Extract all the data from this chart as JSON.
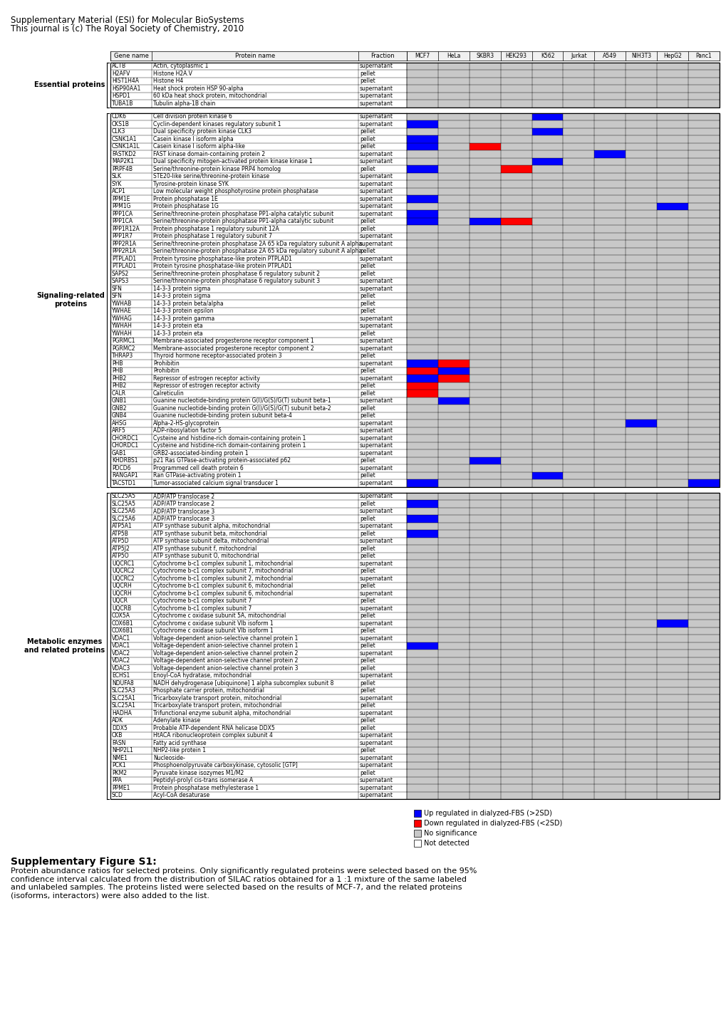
{
  "header_text1": "Supplementary Material (ESI) for Molecular BioSystems",
  "header_text2": "This journal is (c) The Royal Society of Chemistry, 2010",
  "col_headers": [
    "Gene name",
    "Protein name",
    "Fraction",
    "MCF7",
    "HeLa",
    "SKBR3",
    "HEK293",
    "K562",
    "Jurkat",
    "A549",
    "NIH3T3",
    "HepG2",
    "Panc1"
  ],
  "section_labels": [
    "Essential proteins",
    "Signaling-related\nproteins",
    "Metabolic enzymes\nand related proteins"
  ],
  "essential_proteins": [
    [
      "ACTB",
      "Actin, cytoplasmic 1",
      "supernatant",
      0,
      0,
      0,
      0,
      0,
      0,
      0,
      0,
      0,
      0
    ],
    [
      "H2AFV",
      "Histone H2A.V",
      "pellet",
      0,
      0,
      0,
      0,
      0,
      0,
      0,
      0,
      0,
      0
    ],
    [
      "HIST1H4A",
      "Histone H4",
      "pellet",
      0,
      0,
      0,
      0,
      0,
      0,
      0,
      0,
      0,
      0
    ],
    [
      "HSP90AA1",
      "Heat shock protein HSP 90-alpha",
      "supernatant",
      0,
      0,
      0,
      0,
      0,
      0,
      0,
      0,
      0,
      0
    ],
    [
      "HSPD1",
      "60 kDa heat shock protein, mitochondrial",
      "supernatant",
      0,
      0,
      0,
      0,
      0,
      0,
      0,
      0,
      0,
      0
    ],
    [
      "TUBA1B",
      "Tubulin alpha-1B chain",
      "supernatant",
      0,
      0,
      0,
      0,
      0,
      0,
      0,
      0,
      0,
      0
    ]
  ],
  "signaling_proteins": [
    [
      "CDK6",
      "Cell division protein kinase 6",
      "supernatant",
      0,
      0,
      0,
      0,
      1,
      0,
      0,
      0,
      0,
      0
    ],
    [
      "CKS1B",
      "Cyclin-dependent kinases regulatory subunit 1",
      "supernatant",
      1,
      0,
      0,
      0,
      0,
      0,
      0,
      0,
      0,
      0
    ],
    [
      "CLK3",
      "Dual specificity protein kinase CLK3",
      "pellet",
      0,
      0,
      0,
      0,
      1,
      0,
      0,
      0,
      0,
      0
    ],
    [
      "CSNK1A1",
      "Casein kinase I isoform alpha",
      "pellet",
      1,
      0,
      0,
      0,
      0,
      0,
      0,
      0,
      0,
      0
    ],
    [
      "CSNK1A1L",
      "Casein kinase I isoform alpha-like",
      "pellet",
      1,
      0,
      2,
      0,
      0,
      0,
      0,
      0,
      0,
      0
    ],
    [
      "FASTKD2",
      "FAST kinase domain-containing protein 2",
      "supernatant",
      0,
      0,
      0,
      0,
      0,
      0,
      1,
      0,
      0,
      0
    ],
    [
      "MAP2K1",
      "Dual specificity mitogen-activated protein kinase kinase 1",
      "supernatant",
      0,
      0,
      0,
      0,
      1,
      0,
      0,
      0,
      0,
      0
    ],
    [
      "PRPF4B",
      "Serine/threonine-protein kinase PRP4 homolog",
      "pellet",
      1,
      0,
      0,
      2,
      0,
      0,
      0,
      0,
      0,
      0
    ],
    [
      "SLK",
      "STE20-like serine/threonine-protein kinase",
      "supernatant",
      0,
      0,
      0,
      0,
      0,
      0,
      0,
      0,
      0,
      0
    ],
    [
      "SYK",
      "Tyrosine-protein kinase SYK",
      "supernatant",
      0,
      0,
      0,
      0,
      0,
      0,
      0,
      0,
      0,
      0
    ],
    [
      "ACP1",
      "Low molecular weight phosphotyrosine protein phosphatase",
      "supernatant",
      0,
      0,
      0,
      0,
      0,
      0,
      0,
      0,
      0,
      0
    ],
    [
      "PPM1E",
      "Protein phosphatase 1E",
      "supernatant",
      1,
      0,
      0,
      0,
      0,
      0,
      0,
      0,
      0,
      0
    ],
    [
      "PPM1G",
      "Protein phosphatase 1G",
      "supernatant",
      0,
      0,
      0,
      0,
      0,
      0,
      0,
      0,
      1,
      0
    ],
    [
      "PPP1CA",
      "Serine/threonine-protein phosphatase PP1-alpha catalytic subunit",
      "supernatant",
      1,
      0,
      0,
      0,
      0,
      0,
      0,
      0,
      0,
      0
    ],
    [
      "PPP1CA",
      "Serine/threonine-protein phosphatase PP1-alpha catalytic subunit",
      "pellet",
      1,
      0,
      1,
      2,
      0,
      0,
      0,
      0,
      0,
      0
    ],
    [
      "PPP1R12A",
      "Protein phosphatase 1 regulatory subunit 12A",
      "pellet",
      0,
      0,
      0,
      0,
      0,
      0,
      0,
      0,
      0,
      0
    ],
    [
      "PPP1R7",
      "Protein phosphatase 1 regulatory subunit 7",
      "supernatant",
      0,
      0,
      0,
      0,
      0,
      0,
      0,
      0,
      0,
      0
    ],
    [
      "PPP2R1A",
      "Serine/threonine-protein phosphatase 2A 65 kDa regulatory subunit A alpha",
      "supernatant",
      0,
      0,
      0,
      0,
      0,
      0,
      0,
      0,
      0,
      0
    ],
    [
      "PPP2R1A",
      "Serine/threonine-protein phosphatase 2A 65 kDa regulatory subunit A alpha",
      "pellet",
      0,
      0,
      0,
      0,
      0,
      0,
      0,
      0,
      0,
      0
    ],
    [
      "PTPLAD1",
      "Protein tyrosine phosphatase-like protein PTPLAD1",
      "supernatant",
      0,
      0,
      0,
      0,
      0,
      0,
      0,
      0,
      0,
      0
    ],
    [
      "PTPLAD1",
      "Protein tyrosine phosphatase-like protein PTPLAD1",
      "pellet",
      0,
      0,
      0,
      0,
      0,
      0,
      0,
      0,
      0,
      0
    ],
    [
      "SAPS2",
      "Serine/threonine-protein phosphatase 6 regulatory subunit 2",
      "pellet",
      0,
      0,
      0,
      0,
      0,
      0,
      0,
      0,
      0,
      0
    ],
    [
      "SAPS3",
      "Serine/threonine-protein phosphatase 6 regulatory subunit 3",
      "supernatant",
      0,
      0,
      0,
      0,
      0,
      0,
      0,
      0,
      0,
      0
    ],
    [
      "SFN",
      "14-3-3 protein sigma",
      "supernatant",
      0,
      0,
      0,
      0,
      0,
      0,
      0,
      0,
      0,
      0
    ],
    [
      "SFN",
      "14-3-3 protein sigma",
      "pellet",
      0,
      0,
      0,
      0,
      0,
      0,
      0,
      0,
      0,
      0
    ],
    [
      "YWHAB",
      "14-3-3 protein beta/alpha",
      "pellet",
      0,
      0,
      0,
      0,
      0,
      0,
      0,
      0,
      0,
      0
    ],
    [
      "YWHAE",
      "14-3-3 protein epsilon",
      "pellet",
      0,
      0,
      0,
      0,
      0,
      0,
      0,
      0,
      0,
      0
    ],
    [
      "YWHAG",
      "14-3-3 protein gamma",
      "supernatant",
      0,
      0,
      0,
      0,
      0,
      0,
      0,
      0,
      0,
      0
    ],
    [
      "YWHAH",
      "14-3-3 protein eta",
      "supernatant",
      0,
      0,
      0,
      0,
      0,
      0,
      0,
      0,
      0,
      0
    ],
    [
      "YWHAH",
      "14-3-3 protein eta",
      "pellet",
      0,
      0,
      0,
      0,
      0,
      0,
      0,
      0,
      0,
      0
    ],
    [
      "PGRMC1",
      "Membrane-associated progesterone receptor component 1",
      "supernatant",
      0,
      0,
      0,
      0,
      0,
      0,
      0,
      0,
      0,
      0
    ],
    [
      "PGRMC2",
      "Membrane-associated progesterone receptor component 2",
      "supernatant",
      0,
      0,
      0,
      0,
      0,
      0,
      0,
      0,
      0,
      0
    ],
    [
      "THRAP3",
      "Thyroid hormone receptor-associated protein 3",
      "pellet",
      0,
      0,
      0,
      0,
      0,
      0,
      0,
      0,
      0,
      0
    ],
    [
      "PHB",
      "Prohibitin",
      "supernatant",
      1,
      2,
      0,
      0,
      0,
      0,
      0,
      0,
      0,
      0
    ],
    [
      "PHB",
      "Prohibitin",
      "pellet",
      2,
      1,
      0,
      0,
      0,
      0,
      0,
      0,
      0,
      0
    ],
    [
      "PHB2",
      "Repressor of estrogen receptor activity",
      "supernatant",
      1,
      2,
      0,
      0,
      0,
      0,
      0,
      0,
      0,
      0
    ],
    [
      "PHB2",
      "Repressor of estrogen receptor activity",
      "pellet",
      2,
      0,
      0,
      0,
      0,
      0,
      0,
      0,
      0,
      0
    ],
    [
      "CALR",
      "Calreticulin",
      "pellet",
      2,
      0,
      0,
      0,
      0,
      0,
      0,
      0,
      0,
      0
    ],
    [
      "GNB1",
      "Guanine nucleotide-binding protein G(I)/G(S)/G(T) subunit beta-1",
      "supernatant",
      0,
      1,
      0,
      0,
      0,
      0,
      0,
      0,
      0,
      0
    ],
    [
      "GNB2",
      "Guanine nucleotide-binding protein G(I)/G(S)/G(T) subunit beta-2",
      "pellet",
      0,
      0,
      0,
      0,
      0,
      0,
      0,
      0,
      0,
      0
    ],
    [
      "GNB4",
      "Guanine nucleotide-binding protein subunit beta-4",
      "pellet",
      0,
      0,
      0,
      0,
      0,
      0,
      0,
      0,
      0,
      0
    ],
    [
      "AHSG",
      "Alpha-2-HS-glycoprotein",
      "supernatant",
      0,
      0,
      0,
      0,
      0,
      0,
      0,
      1,
      0,
      0
    ],
    [
      "ARF5",
      "ADP-ribosylation factor 5",
      "supernatant",
      0,
      0,
      0,
      0,
      0,
      0,
      0,
      0,
      0,
      0
    ],
    [
      "CHORDC1",
      "Cysteine and histidine-rich domain-containing protein 1",
      "supernatant",
      0,
      0,
      0,
      0,
      0,
      0,
      0,
      0,
      0,
      0
    ],
    [
      "CHORDC1",
      "Cysteine and histidine-rich domain-containing protein 1",
      "supernatant",
      0,
      0,
      0,
      0,
      0,
      0,
      0,
      0,
      0,
      0
    ],
    [
      "GAB1",
      "GRB2-associated-binding protein 1",
      "supernatant",
      0,
      0,
      0,
      0,
      0,
      0,
      0,
      0,
      0,
      0
    ],
    [
      "KHDRBS1",
      "p21 Ras GTPase-activating protein-associated p62",
      "pellet",
      0,
      0,
      1,
      0,
      0,
      0,
      0,
      0,
      0,
      0
    ],
    [
      "PDCD6",
      "Programmed cell death protein 6",
      "supernatant",
      0,
      0,
      0,
      0,
      0,
      0,
      0,
      0,
      0,
      0
    ],
    [
      "RANGAP1",
      "Ran GTPase-activating protein 1",
      "pellet",
      0,
      0,
      0,
      0,
      1,
      0,
      0,
      0,
      0,
      0
    ],
    [
      "TACSTD1",
      "Tumor-associated calcium signal transducer 1",
      "supernatant",
      1,
      0,
      0,
      0,
      0,
      0,
      0,
      0,
      0,
      1
    ]
  ],
  "metabolic_proteins": [
    [
      "SLC25A5",
      "ADP/ATP translocase 2",
      "supernatant",
      0,
      0,
      0,
      0,
      0,
      0,
      0,
      0,
      0,
      0
    ],
    [
      "SLC25A5",
      "ADP/ATP translocase 2",
      "pellet",
      1,
      0,
      0,
      0,
      0,
      0,
      0,
      0,
      0,
      0
    ],
    [
      "SLC25A6",
      "ADP/ATP translocase 3",
      "supernatant",
      0,
      0,
      0,
      0,
      0,
      0,
      0,
      0,
      0,
      0
    ],
    [
      "SLC25A6",
      "ADP/ATP translocase 3",
      "pellet",
      1,
      0,
      0,
      0,
      0,
      0,
      0,
      0,
      0,
      0
    ],
    [
      "ATP5A1",
      "ATP synthase subunit alpha, mitochondrial",
      "supernatant",
      0,
      0,
      0,
      0,
      0,
      0,
      0,
      0,
      0,
      0
    ],
    [
      "ATP5B",
      "ATP synthase subunit beta, mitochondrial",
      "pellet",
      1,
      0,
      0,
      0,
      0,
      0,
      0,
      0,
      0,
      0
    ],
    [
      "ATP5D",
      "ATP synthase subunit delta, mitochondrial",
      "supernatant",
      0,
      0,
      0,
      0,
      0,
      0,
      0,
      0,
      0,
      0
    ],
    [
      "ATP5J2",
      "ATP synthase subunit f, mitochondrial",
      "pellet",
      0,
      0,
      0,
      0,
      0,
      0,
      0,
      0,
      0,
      0
    ],
    [
      "ATP5O",
      "ATP synthase subunit O, mitochondrial",
      "pellet",
      0,
      0,
      0,
      0,
      0,
      0,
      0,
      0,
      0,
      0
    ],
    [
      "UQCRC1",
      "Cytochrome b-c1 complex subunit 1, mitochondrial",
      "supernatant",
      0,
      0,
      0,
      0,
      0,
      0,
      0,
      0,
      0,
      0
    ],
    [
      "UQCRC2",
      "Cytochrome b-c1 complex subunit 7, mitochondrial",
      "pellet",
      0,
      0,
      0,
      0,
      0,
      0,
      0,
      0,
      0,
      0
    ],
    [
      "UQCRC2",
      "Cytochrome b-c1 complex subunit 2, mitochondrial",
      "supernatant",
      0,
      0,
      0,
      0,
      0,
      0,
      0,
      0,
      0,
      0
    ],
    [
      "UQCRH",
      "Cytochrome b-c1 complex subunit 6, mitochondrial",
      "pellet",
      0,
      0,
      0,
      0,
      0,
      0,
      0,
      0,
      0,
      0
    ],
    [
      "UQCRH",
      "Cytochrome b-c1 complex subunit 6, mitochondrial",
      "supernatant",
      0,
      0,
      0,
      0,
      0,
      0,
      0,
      0,
      0,
      0
    ],
    [
      "UQCR",
      "Cytochrome b-c1 complex subunit 7",
      "pellet",
      0,
      0,
      0,
      0,
      0,
      0,
      0,
      0,
      0,
      0
    ],
    [
      "UQCRB",
      "Cytochrome b-c1 complex subunit 7",
      "supernatant",
      0,
      0,
      0,
      0,
      0,
      0,
      0,
      0,
      0,
      0
    ],
    [
      "COX5A",
      "Cytochrome c oxidase subunit 5A, mitochondrial",
      "pellet",
      0,
      0,
      0,
      0,
      0,
      0,
      0,
      0,
      0,
      0
    ],
    [
      "COX6B1",
      "Cytochrome c oxidase subunit VIb isoform 1",
      "supernatant",
      0,
      0,
      0,
      0,
      0,
      0,
      0,
      0,
      1,
      0
    ],
    [
      "COX6B1",
      "Cytochrome c oxidase subunit VIb isoform 1",
      "pellet",
      0,
      0,
      0,
      0,
      0,
      0,
      0,
      0,
      0,
      0
    ],
    [
      "VDAC1",
      "Voltage-dependent anion-selective channel protein 1",
      "supernatant",
      0,
      0,
      0,
      0,
      0,
      0,
      0,
      0,
      0,
      0
    ],
    [
      "VDAC1",
      "Voltage-dependent anion-selective channel protein 1",
      "pellet",
      1,
      0,
      0,
      0,
      0,
      0,
      0,
      0,
      0,
      0
    ],
    [
      "VDAC2",
      "Voltage-dependent anion-selective channel protein 2",
      "supernatant",
      0,
      0,
      0,
      0,
      0,
      0,
      0,
      0,
      0,
      0
    ],
    [
      "VDAC2",
      "Voltage-dependent anion-selective channel protein 2",
      "pellet",
      0,
      0,
      0,
      0,
      0,
      0,
      0,
      0,
      0,
      0
    ],
    [
      "VDAC3",
      "Voltage-dependent anion-selective channel protein 3",
      "pellet",
      0,
      0,
      0,
      0,
      0,
      0,
      0,
      0,
      0,
      0
    ],
    [
      "ECHS1",
      "Enoyl-CoA hydratase, mitochondrial",
      "supernatant",
      0,
      0,
      0,
      0,
      0,
      0,
      0,
      0,
      0,
      0
    ],
    [
      "NDUFA8",
      "NADH dehydrogenase [ubiquinone] 1 alpha subcomplex subunit 8",
      "pellet",
      0,
      0,
      0,
      0,
      0,
      0,
      0,
      0,
      0,
      0
    ],
    [
      "SLC25A3",
      "Phosphate carrier protein, mitochondrial",
      "pellet",
      0,
      0,
      0,
      0,
      0,
      0,
      0,
      0,
      0,
      0
    ],
    [
      "SLC25A1",
      "Tricarboxylate transport protein, mitochondrial",
      "supernatant",
      0,
      0,
      0,
      0,
      0,
      0,
      0,
      0,
      0,
      0
    ],
    [
      "SLC25A1",
      "Tricarboxylate transport protein, mitochondrial",
      "pellet",
      0,
      0,
      0,
      0,
      0,
      0,
      0,
      0,
      0,
      0
    ],
    [
      "HADHA",
      "Trifunctional enzyme subunit alpha, mitochondrial",
      "supernatant",
      0,
      0,
      0,
      0,
      0,
      0,
      0,
      0,
      0,
      0
    ],
    [
      "ADK",
      "Adenylate kinase",
      "pellet",
      0,
      0,
      0,
      0,
      0,
      0,
      0,
      0,
      0,
      0
    ],
    [
      "DDX5",
      "Probable ATP-dependent RNA helicase DDX5",
      "pellet",
      0,
      0,
      0,
      0,
      0,
      0,
      0,
      0,
      0,
      0
    ],
    [
      "CKB",
      "HtACA ribonucleoprotein complex subunit 4",
      "supernatant",
      0,
      0,
      0,
      0,
      0,
      0,
      0,
      0,
      0,
      0
    ],
    [
      "FASN",
      "Fatty acid synthase",
      "supernatant",
      0,
      0,
      0,
      0,
      0,
      0,
      0,
      0,
      0,
      0
    ],
    [
      "NHP2L1",
      "NHP2-like protein 1",
      "pellet",
      0,
      0,
      0,
      0,
      0,
      0,
      0,
      0,
      0,
      0
    ],
    [
      "NME1",
      "Nucleoside-",
      "supernatant",
      0,
      0,
      0,
      0,
      0,
      0,
      0,
      0,
      0,
      0
    ],
    [
      "PCK1",
      "Phosphoenolpyruvate carboxykinase, cytosolic [GTP]",
      "supernatant",
      0,
      0,
      0,
      0,
      0,
      0,
      0,
      0,
      0,
      0
    ],
    [
      "PKM2",
      "Pyruvate kinase isozymes M1/M2",
      "pellet",
      0,
      0,
      0,
      0,
      0,
      0,
      0,
      0,
      0,
      0
    ],
    [
      "PPA",
      "Peptidyl-prolyl cis-trans isomerase A",
      "supernatant",
      0,
      0,
      0,
      0,
      0,
      0,
      0,
      0,
      0,
      0
    ],
    [
      "PPME1",
      "Protein phosphatase methylesterase 1",
      "supernatant",
      0,
      0,
      0,
      0,
      0,
      0,
      0,
      0,
      0,
      0
    ],
    [
      "SCD",
      "Acyl-CoA desaturase",
      "supernatant",
      0,
      0,
      0,
      0,
      0,
      0,
      0,
      0,
      0,
      0
    ]
  ],
  "legend": [
    {
      "label": "Up regulated in dialyzed-FBS (>2SD)",
      "color": "#0000FF"
    },
    {
      "label": "Down regulated in dialyzed-FBS (<2SD)",
      "color": "#FF0000"
    },
    {
      "label": "No significance",
      "color": "#C8C8C8"
    },
    {
      "label": "Not detected",
      "color": "#FFFFFF"
    }
  ],
  "footer_title": "Supplementary Figure S1:",
  "footer_text": "Protein abundance ratios for selected proteins. Only significantly regulated proteins were selected based on the 95%\nconfidence interval calculated from the distribution of SILAC ratios obtained for a 1 :1 mixture of the same labeled\nand unlabeled samples. The proteins listed were selected based on the results of MCF-7, and the related proteins\n(isoforms, interactors) were also added to the list.",
  "colors": {
    "blue": "#0000FF",
    "red": "#FF0000",
    "gray": "#C8C8C8",
    "white": "#FFFFFF",
    "black": "#000000",
    "header_bg": "#F0F0F0"
  }
}
